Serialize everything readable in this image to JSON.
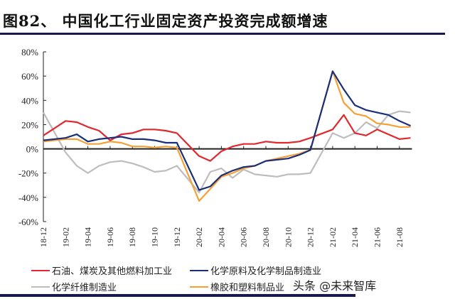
{
  "chart_data": {
    "type": "line",
    "title": "图82、 中国化工行业固定资产投资完成额增速",
    "xlabel": "",
    "ylabel": "",
    "ylim": [
      -60,
      80
    ],
    "yticks": [
      "80%",
      "60%",
      "40%",
      "20%",
      "0%",
      "-20%",
      "-40%",
      "-60%"
    ],
    "ytick_values": [
      80,
      60,
      40,
      20,
      0,
      -20,
      -40,
      -60
    ],
    "categories": [
      "18-12",
      "19-01",
      "19-02",
      "19-03",
      "19-04",
      "19-05",
      "19-06",
      "19-07",
      "19-08",
      "19-09",
      "19-10",
      "19-11",
      "19-12",
      "20-01",
      "20-02",
      "20-03",
      "20-04",
      "20-05",
      "20-06",
      "20-07",
      "20-08",
      "20-09",
      "20-10",
      "20-11",
      "20-12",
      "21-01",
      "21-02",
      "21-03",
      "21-04",
      "21-05",
      "21-06",
      "21-07",
      "21-08",
      "21-09"
    ],
    "xtick_labels": [
      "18-12",
      "19-02",
      "19-04",
      "19-06",
      "19-08",
      "19-10",
      "19-12",
      "20-02",
      "20-04",
      "20-06",
      "20-08",
      "20-10",
      "20-12",
      "21-02",
      "21-04",
      "21-06",
      "21-08"
    ],
    "grid": false,
    "legend_position": "bottom",
    "series": [
      {
        "name": "石油、煤炭及其他燃料加工业",
        "color": "#e0282e",
        "values": [
          11,
          null,
          23,
          22,
          18,
          15,
          7,
          12,
          13,
          16,
          16,
          15,
          13,
          null,
          -6,
          -10,
          -2,
          2,
          4,
          4,
          6,
          5,
          5,
          6,
          9,
          null,
          16,
          28,
          13,
          11,
          16,
          12,
          8,
          9
        ]
      },
      {
        "name": "化学原料及化学制品制造业",
        "color": "#1a2f7a",
        "values": [
          7,
          null,
          9,
          12,
          6,
          8,
          9,
          10,
          8,
          8,
          7,
          5,
          5,
          null,
          -34,
          -31,
          -22,
          -18,
          -15,
          -14,
          -10,
          -9,
          -8,
          -5,
          -1,
          null,
          64,
          49,
          36,
          32,
          30,
          28,
          23,
          19
        ]
      },
      {
        "name": "化学纤维制造业",
        "color": "#bdbdbd",
        "values": [
          30,
          null,
          -3,
          -14,
          -20,
          -14,
          -11,
          -10,
          -12,
          -15,
          -19,
          -18,
          -14,
          null,
          -36,
          -19,
          -16,
          -24,
          -17,
          -21,
          -22,
          -23,
          -21,
          -21,
          -20,
          null,
          13,
          9,
          13,
          22,
          17,
          28,
          31,
          30
        ]
      },
      {
        "name": "橡胶和塑料制品业",
        "color": "#f5a035",
        "values": [
          6,
          null,
          8,
          8,
          4,
          4,
          6,
          5,
          2,
          2,
          1,
          2,
          1,
          null,
          -43,
          -33,
          -23,
          -20,
          -16,
          -14,
          -10,
          -8,
          -6,
          -4,
          -1,
          null,
          64,
          38,
          29,
          27,
          21,
          20,
          18,
          18
        ]
      }
    ]
  },
  "watermark": "头条 @未来智库"
}
